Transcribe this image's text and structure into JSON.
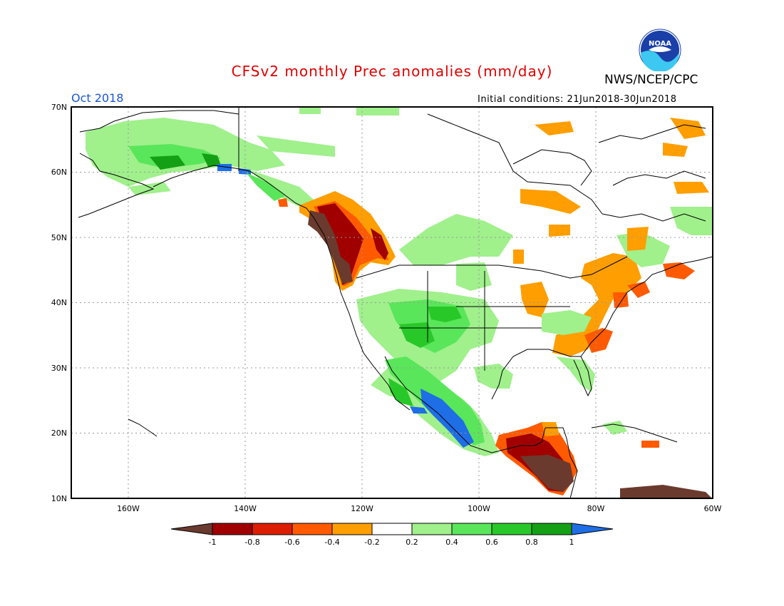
{
  "title": "CFSv2 monthly Prec anomalies (mm/day)",
  "agency": "NWS/NCEP/CPC",
  "logo_text": "NOAA",
  "valid_month": "Oct 2018",
  "initial_conditions": "Initial conditions: 21Jun2018-30Jun2018",
  "lat_labels": [
    "70N",
    "60N",
    "50N",
    "40N",
    "30N",
    "20N",
    "10N"
  ],
  "lon_labels": [
    "160W",
    "140W",
    "120W",
    "100W",
    "80W",
    "60W"
  ],
  "colorbar": {
    "labels": [
      "-1",
      "-0.8",
      "-0.6",
      "-0.4",
      "-0.2",
      "0.2",
      "0.4",
      "0.6",
      "0.8",
      "1"
    ],
    "colors": [
      "#6b3a2e",
      "#a00000",
      "#dc1e00",
      "#ff5a00",
      "#ff9e00",
      "#ffffff",
      "#a0f08c",
      "#5ae65a",
      "#28c828",
      "#14a014",
      "#1e6ee6"
    ]
  },
  "colors": {
    "title": "#e00000",
    "month": "#1a55d8"
  }
}
